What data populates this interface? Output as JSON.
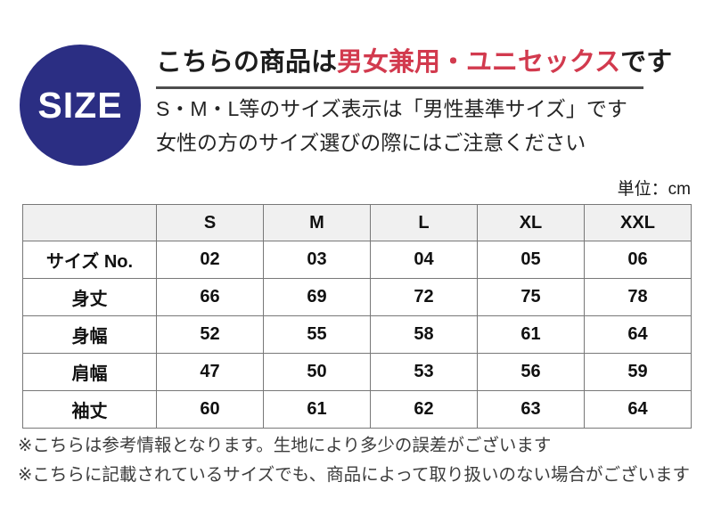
{
  "badge": {
    "label": "SIZE",
    "bg_color": "#2b2e83",
    "text_color": "#ffffff"
  },
  "header": {
    "title_prefix": "こちらの商品は",
    "title_highlight": "男女兼用・ユニセックス",
    "title_suffix": "です",
    "highlight_color": "#d23a4e",
    "subtitle_line1": "S・M・L等のサイズ表示は「男性基準サイズ」です",
    "subtitle_line2": "女性の方のサイズ選びの際にはご注意ください"
  },
  "unit_label": "単位：cm",
  "size_table": {
    "header_bg": "#f0f0f0",
    "border_color": "#787878",
    "columns": [
      "S",
      "M",
      "L",
      "XL",
      "XXL"
    ],
    "rows": [
      {
        "label": "サイズ No.",
        "values": [
          "02",
          "03",
          "04",
          "05",
          "06"
        ]
      },
      {
        "label": "身丈",
        "values": [
          "66",
          "69",
          "72",
          "75",
          "78"
        ]
      },
      {
        "label": "身幅",
        "values": [
          "52",
          "55",
          "58",
          "61",
          "64"
        ]
      },
      {
        "label": "肩幅",
        "values": [
          "47",
          "50",
          "53",
          "56",
          "59"
        ]
      },
      {
        "label": "袖丈",
        "values": [
          "60",
          "61",
          "62",
          "63",
          "64"
        ]
      }
    ]
  },
  "notes": [
    "※こちらは参考情報となります。生地により多少の誤差がございます",
    "※こちらに記載されているサイズでも、商品によって取り扱いのない場合がございます"
  ]
}
